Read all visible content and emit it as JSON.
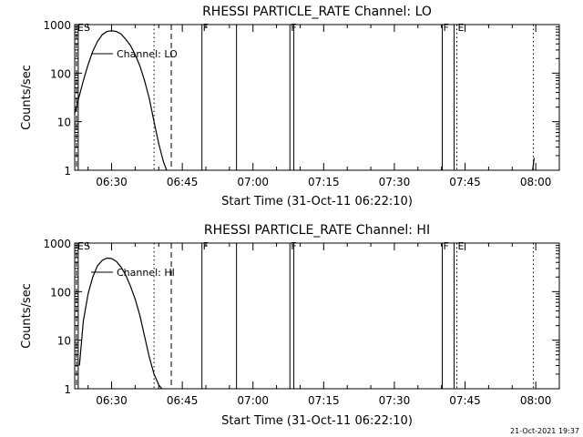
{
  "footer_timestamp": "21-Oct-2021 19:37",
  "chart_data": [
    {
      "type": "line",
      "title": "RHESSI PARTICLE_RATE Channel: LO",
      "xlabel": "Start Time (31-Oct-11 06:22:10)",
      "ylabel": "Counts/sec",
      "yscale": "log",
      "ylim": [
        1,
        1000
      ],
      "xlim": [
        "06:22:10",
        "08:05:00"
      ],
      "y_tick_labels": [
        "1",
        "10",
        "100",
        "1000"
      ],
      "x_ticks": [
        "06:30",
        "06:45",
        "07:00",
        "07:15",
        "07:30",
        "07:45",
        "08:00"
      ],
      "grid": false,
      "legend": {
        "position": "top-left",
        "entries": [
          "Channel: LO"
        ]
      },
      "series": [
        {
          "name": "Channel: LO",
          "x": [
            "06:22:10",
            "06:23:00",
            "06:24:00",
            "06:25:00",
            "06:26:00",
            "06:27:00",
            "06:28:00",
            "06:29:00",
            "06:30:00",
            "06:31:00",
            "06:32:00",
            "06:33:00",
            "06:34:00",
            "06:35:00",
            "06:36:00",
            "06:37:00",
            "06:38:00",
            "06:39:00",
            "06:40:00",
            "06:41:00",
            "06:41:40"
          ],
          "y": [
            15,
            30,
            70,
            150,
            280,
            450,
            620,
            720,
            750,
            720,
            640,
            500,
            370,
            240,
            140,
            70,
            30,
            10,
            3.5,
            1.5,
            1
          ]
        },
        {
          "name": "",
          "x": [
            "07:59:20",
            "07:59:40"
          ],
          "y": [
            1,
            1.8
          ]
        }
      ],
      "vlines": [
        {
          "time": "06:22:10",
          "style": "dashed",
          "label": "ES"
        },
        {
          "time": "06:22:55",
          "style": "solid",
          "label": ""
        },
        {
          "time": "06:39:00",
          "style": "dotted",
          "label": ""
        },
        {
          "time": "06:42:40",
          "style": "dashed",
          "label": ""
        },
        {
          "time": "06:49:10",
          "style": "solid",
          "label": "F"
        },
        {
          "time": "06:56:30",
          "style": "solid",
          "label": ""
        },
        {
          "time": "07:07:50",
          "style": "solid",
          "label": "F"
        },
        {
          "time": "07:08:40",
          "style": "solid",
          "label": ""
        },
        {
          "time": "07:40:10",
          "style": "solid",
          "label": "F"
        },
        {
          "time": "07:42:40",
          "style": "solid",
          "label": ""
        },
        {
          "time": "07:43:15",
          "style": "dotted",
          "label": "E"
        },
        {
          "time": "07:59:30",
          "style": "dotted",
          "label": ""
        }
      ]
    },
    {
      "type": "line",
      "title": "RHESSI PARTICLE_RATE Channel: HI",
      "xlabel": "Start Time (31-Oct-11 06:22:10)",
      "ylabel": "Counts/sec",
      "yscale": "log",
      "ylim": [
        1,
        1000
      ],
      "xlim": [
        "06:22:10",
        "08:05:00"
      ],
      "y_tick_labels": [
        "1",
        "10",
        "100",
        "1000"
      ],
      "x_ticks": [
        "06:30",
        "06:45",
        "07:00",
        "07:15",
        "07:30",
        "07:45",
        "08:00"
      ],
      "grid": false,
      "legend": {
        "position": "top-left",
        "entries": [
          "Channel: HI"
        ]
      },
      "series": [
        {
          "name": "Channel: HI",
          "x": [
            "06:23:10",
            "06:24:00",
            "06:25:00",
            "06:26:00",
            "06:27:00",
            "06:28:00",
            "06:29:00",
            "06:30:00",
            "06:31:00",
            "06:32:00",
            "06:33:00",
            "06:34:00",
            "06:35:00",
            "06:36:00",
            "06:37:00",
            "06:38:00",
            "06:39:00",
            "06:40:00",
            "06:40:40"
          ],
          "y": [
            3,
            25,
            90,
            200,
            340,
            440,
            490,
            480,
            420,
            320,
            220,
            130,
            70,
            32,
            12,
            4.5,
            2,
            1.2,
            1
          ]
        }
      ],
      "vlines": [
        {
          "time": "06:22:10",
          "style": "dashed",
          "label": "ES"
        },
        {
          "time": "06:22:55",
          "style": "solid",
          "label": ""
        },
        {
          "time": "06:39:00",
          "style": "dotted",
          "label": ""
        },
        {
          "time": "06:42:40",
          "style": "dashed",
          "label": ""
        },
        {
          "time": "06:49:10",
          "style": "solid",
          "label": "F"
        },
        {
          "time": "06:56:30",
          "style": "solid",
          "label": ""
        },
        {
          "time": "07:07:50",
          "style": "solid",
          "label": "F"
        },
        {
          "time": "07:08:40",
          "style": "solid",
          "label": ""
        },
        {
          "time": "07:40:10",
          "style": "solid",
          "label": "F"
        },
        {
          "time": "07:42:40",
          "style": "solid",
          "label": ""
        },
        {
          "time": "07:43:15",
          "style": "dotted",
          "label": "E"
        },
        {
          "time": "07:59:30",
          "style": "dotted",
          "label": ""
        }
      ]
    }
  ]
}
